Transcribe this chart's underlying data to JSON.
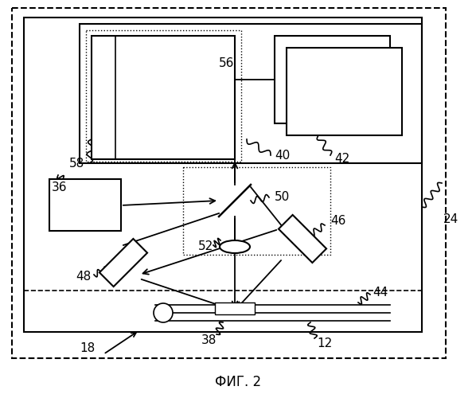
{
  "title": "ФИГ. 2",
  "bg_color": "#ffffff"
}
